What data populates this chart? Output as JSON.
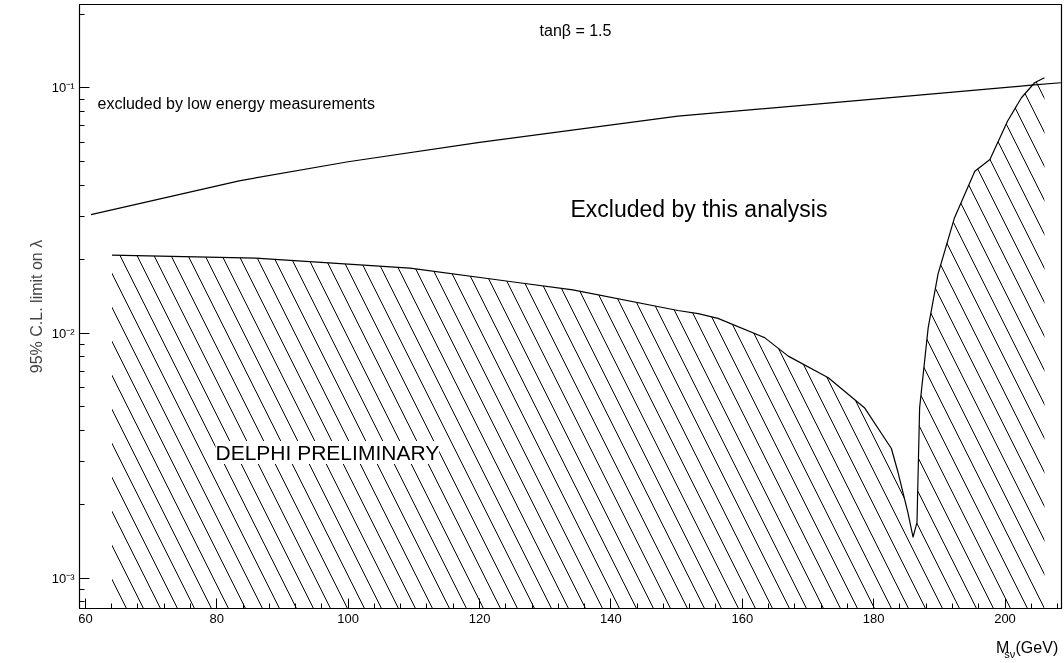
{
  "chart_data": {
    "type": "line",
    "xlabel": "M$_{sν}$(GeV)",
    "ylabel": "95% C.L. limit on λ",
    "annotations": [
      "tanβ = 1.5",
      "excluded by low energy measurements",
      "Excluded by this analysis",
      "DELPHI PRELIMINARY"
    ],
    "log": "y",
    "xlim": [
      59.1,
      208.6
    ],
    "xticks": [
      60,
      80,
      100,
      120,
      140,
      160,
      180,
      200
    ],
    "ylim": [
      0.000752,
      0.219
    ],
    "yticks": [
      {
        "value": 0.001,
        "label": "10⁻³"
      },
      {
        "value": 0.01,
        "label": "10⁻²"
      },
      {
        "value": 0.1,
        "label": "10⁻¹"
      }
    ],
    "series": [
      {
        "color": "#000000",
        "x": [
          60.85,
          83.4,
          100,
          120,
          150.2,
          180,
          204,
          208.5
        ],
        "values": [
          0.0304,
          0.0418,
          0.05,
          0.06,
          0.0767,
          0.09,
          0.1026,
          0.105
        ]
      },
      {
        "type": "area",
        "color": "#000000",
        "x": [
          64.05,
          85.9,
          109.4,
          134.2,
          150.2,
          153.3,
          156.3,
          163.4,
          167.0,
          173.1,
          178.6,
          182.7,
          183.7,
          185.2,
          186.0,
          186.6,
          187.0,
          188.3,
          189.8,
          192.3,
          195.4,
          197.7,
          200.4,
          202.5,
          204.5,
          206.0
        ],
        "values": [
          0.0208,
          0.0202,
          0.0184,
          0.015,
          0.01236,
          0.012,
          0.01148,
          0.00958,
          0.00805,
          0.00657,
          0.00496,
          0.00338,
          0.00271,
          0.00186,
          0.00147,
          0.00169,
          0.00496,
          0.0105,
          0.0174,
          0.0295,
          0.0457,
          0.0511,
          0.0733,
          0.0912,
          0.105,
          0.11
        ]
      }
    ]
  }
}
